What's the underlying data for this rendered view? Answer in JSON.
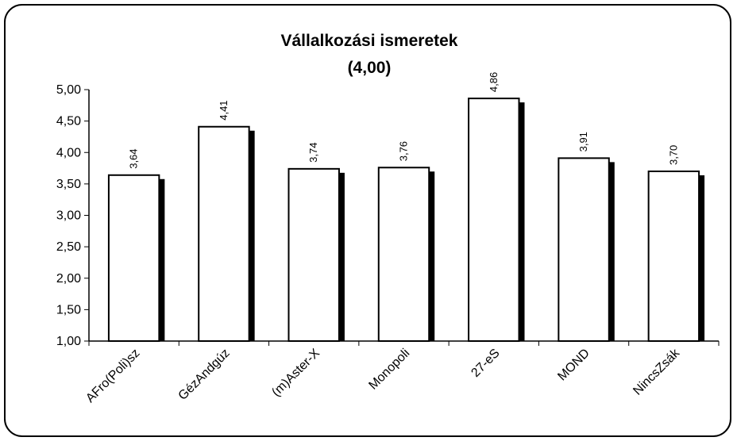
{
  "chart_data": {
    "type": "bar",
    "title": "Vállalkozási ismeretek",
    "subtitle": "(4,00)",
    "categories": [
      "AFro(Poli)sz",
      "GézAndgúz",
      "(m)Aster-X",
      "Monopoli",
      "27-eS",
      "MOND",
      "NincsZsák"
    ],
    "values": [
      3.64,
      4.41,
      3.74,
      3.76,
      4.86,
      3.91,
      3.7
    ],
    "value_labels": [
      "3,64",
      "4,41",
      "3,74",
      "3,76",
      "4,86",
      "3,91",
      "3,70"
    ],
    "color": "#ffffff",
    "ylim": [
      1,
      5
    ],
    "yticks": [
      {
        "value": 1,
        "label": "1,00"
      },
      {
        "value": 1.5,
        "label": "1,50"
      },
      {
        "value": 2,
        "label": "2,00"
      },
      {
        "value": 2.5,
        "label": "2,50"
      },
      {
        "value": 3,
        "label": "3,00"
      },
      {
        "value": 3.5,
        "label": "3,50"
      },
      {
        "value": 4,
        "label": "4,00"
      },
      {
        "value": 4.5,
        "label": "4,50"
      },
      {
        "value": 5,
        "label": "5,00"
      }
    ],
    "grid": false
  }
}
